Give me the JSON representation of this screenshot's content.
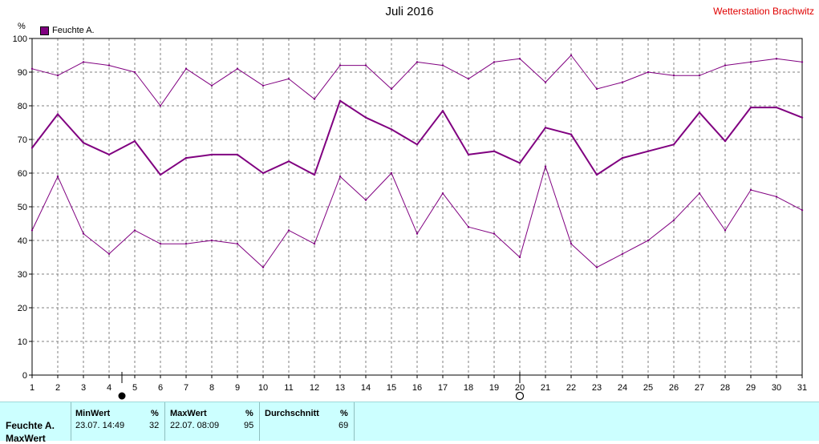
{
  "header": {
    "title": "Juli 2016",
    "station": "Wetterstation Brachwitz",
    "unit": "%"
  },
  "legend": {
    "label": "Feuchte A.",
    "color": "#800080"
  },
  "chart_data": {
    "type": "line",
    "title": "Juli 2016",
    "ylabel": "%",
    "ylim": [
      0,
      100
    ],
    "xlim": [
      1,
      31
    ],
    "yticks": [
      0,
      10,
      20,
      30,
      40,
      50,
      60,
      70,
      80,
      90,
      100
    ],
    "x": [
      1,
      2,
      3,
      4,
      5,
      6,
      7,
      8,
      9,
      10,
      11,
      12,
      13,
      14,
      15,
      16,
      17,
      18,
      19,
      20,
      21,
      22,
      23,
      24,
      25,
      26,
      27,
      28,
      29,
      30,
      31
    ],
    "grid": true,
    "legend_position": "top-left",
    "series": [
      {
        "name": "Feuchte A.",
        "role": "max",
        "color": "#800080",
        "values": [
          91,
          89,
          93,
          92,
          90,
          80,
          91,
          86,
          91,
          86,
          88,
          82,
          92,
          92,
          85,
          93,
          92,
          88,
          93,
          94,
          87,
          95,
          85,
          87,
          90,
          89,
          89,
          92,
          93,
          94,
          93
        ]
      },
      {
        "role": "mean",
        "color": "#800080",
        "values": [
          67.5,
          77.5,
          69,
          65.5,
          69.5,
          59.5,
          64.5,
          65.5,
          65.5,
          60,
          63.5,
          59.5,
          81.5,
          76.5,
          73,
          68.5,
          78.5,
          65.5,
          66.5,
          63,
          73.5,
          71.5,
          59.5,
          64.5,
          66.5,
          68.5,
          78,
          69.5,
          79.5,
          79.5,
          76.5
        ]
      },
      {
        "role": "min",
        "color": "#800080",
        "values": [
          43,
          59,
          42,
          36,
          43,
          39,
          39,
          40,
          39,
          32,
          43,
          39,
          59,
          52,
          60,
          42,
          54,
          44,
          42,
          35,
          62,
          39,
          32,
          36,
          40,
          46,
          54,
          43,
          55,
          53,
          49
        ]
      }
    ],
    "markers": [
      {
        "x": 4.5,
        "symbol": "filled-circle"
      },
      {
        "x": 20,
        "symbol": "open-circle"
      }
    ]
  },
  "summary": {
    "row_label": "Feuchte A.",
    "row_label_2": "MaxWert",
    "min": {
      "header": "MinWert",
      "unit": "%",
      "when": "23.07.  14:49",
      "value": "32"
    },
    "max": {
      "header": "MaxWert",
      "unit": "%",
      "when": "22.07.  08:09",
      "value": "95"
    },
    "avg": {
      "header": "Durchschnitt",
      "unit": "%",
      "value": "69"
    }
  }
}
